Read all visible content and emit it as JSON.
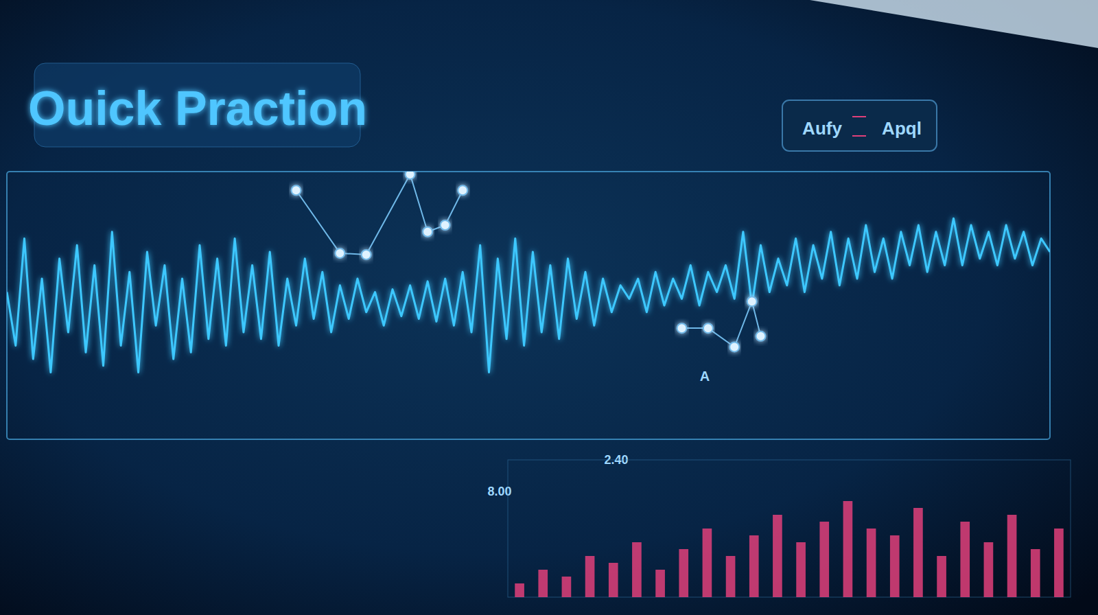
{
  "chart_data": [
    {
      "type": "line",
      "title": "Ouick Praction",
      "annotations": [
        "Aufy",
        "Apql",
        "8.00",
        "2.40",
        "A"
      ],
      "x": [
        0,
        1,
        2,
        3,
        4,
        5,
        6,
        7,
        8,
        9,
        10,
        11,
        12,
        13,
        14,
        15,
        16,
        17,
        18,
        19,
        20,
        21,
        22,
        23,
        24,
        25,
        26,
        27,
        28,
        29,
        30,
        31,
        32,
        33,
        34,
        35,
        36,
        37,
        38,
        39,
        40,
        41,
        42,
        43,
        44,
        45,
        46,
        47,
        48,
        49,
        50,
        51,
        52,
        53,
        54,
        55,
        56,
        57,
        58,
        59,
        60,
        61,
        62,
        63,
        64,
        65,
        66,
        67,
        68,
        69,
        70,
        71,
        72,
        73,
        74,
        75,
        76,
        77,
        78,
        79,
        80,
        81,
        82,
        83,
        84,
        85,
        86,
        87,
        88,
        89,
        90,
        91,
        92,
        93,
        94,
        95,
        96,
        97,
        98,
        99,
        100,
        101,
        102,
        103,
        104,
        105,
        106,
        107,
        108,
        109,
        110,
        111,
        112,
        113,
        114,
        115,
        116,
        117,
        118,
        119
      ],
      "series": [
        {
          "color": "#3ec8ff",
          "values": [
            0.1,
            -0.3,
            0.5,
            -0.4,
            0.2,
            -0.5,
            0.35,
            -0.2,
            0.45,
            -0.35,
            0.3,
            -0.45,
            0.55,
            -0.3,
            0.25,
            -0.5,
            0.4,
            -0.15,
            0.3,
            -0.4,
            0.2,
            -0.35,
            0.45,
            -0.25,
            0.35,
            -0.3,
            0.5,
            -0.2,
            0.3,
            -0.25,
            0.4,
            -0.3,
            0.2,
            -0.15,
            0.35,
            -0.1,
            0.25,
            -0.2,
            0.15,
            -0.1,
            0.2,
            -0.05,
            0.1,
            -0.15,
            0.12,
            -0.08,
            0.15,
            -0.1,
            0.18,
            -0.12,
            0.2,
            -0.15,
            0.25,
            -0.2,
            0.45,
            -0.5,
            0.35,
            -0.25,
            0.5,
            -0.3,
            0.4,
            -0.2,
            0.3,
            -0.25,
            0.35,
            -0.1,
            0.25,
            -0.15,
            0.2,
            -0.05,
            0.15,
            0.05,
            0.2,
            -0.05,
            0.25,
            0.0,
            0.2,
            0.05,
            0.3,
            0.0,
            0.25,
            0.1,
            0.3,
            0.05,
            0.55,
            0.0,
            0.45,
            0.1,
            0.35,
            0.15,
            0.5,
            0.1,
            0.45,
            0.2,
            0.55,
            0.15,
            0.5,
            0.2,
            0.6,
            0.25,
            0.5,
            0.2,
            0.55,
            0.3,
            0.6,
            0.25,
            0.55,
            0.3,
            0.65,
            0.3,
            0.6,
            0.35,
            0.55,
            0.3,
            0.6,
            0.35,
            0.55,
            0.3,
            0.5,
            0.4
          ]
        }
      ],
      "xlim": [
        0,
        119
      ],
      "ylim": [
        -1,
        1
      ],
      "tick_labels": false,
      "grid": false
    },
    {
      "type": "line",
      "marker": "circle",
      "x": [
        33,
        38,
        41,
        46,
        48,
        50,
        52,
        65,
        77,
        80,
        83,
        85,
        86
      ],
      "series": [
        {
          "color": "#6fb8e8",
          "values": [
            0.86,
            0.39,
            0.38,
            0.98,
            0.55,
            0.6,
            0.86,
            null,
            -0.17,
            -0.17,
            -0.31,
            0.03,
            -0.23
          ]
        }
      ],
      "xlim": [
        0,
        119
      ],
      "ylim": [
        -1,
        1
      ],
      "tick_labels": false
    },
    {
      "type": "bar",
      "color": "#e0407a",
      "categories": [
        null,
        null,
        null,
        null,
        null,
        null,
        null,
        null,
        null,
        null,
        null,
        null,
        null,
        null,
        null,
        null,
        null,
        null,
        null,
        null,
        null,
        null,
        null,
        null
      ],
      "values": [
        0.1,
        0.2,
        0.15,
        0.3,
        0.25,
        0.4,
        0.2,
        0.35,
        0.5,
        0.3,
        0.45,
        0.6,
        0.4,
        0.55,
        0.7,
        0.5,
        0.45,
        0.65,
        0.3,
        0.55,
        0.4,
        0.6,
        0.35,
        0.5
      ],
      "ylim": [
        0,
        1
      ],
      "tick_labels": false
    }
  ]
}
